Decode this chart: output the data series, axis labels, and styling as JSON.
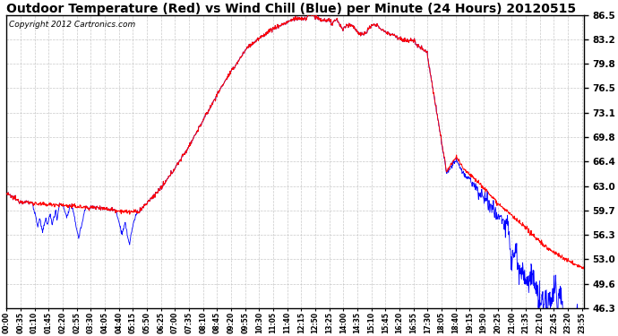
{
  "title": "Outdoor Temperature (Red) vs Wind Chill (Blue) per Minute (24 Hours) 20120515",
  "copyright_text": "Copyright 2012 Cartronics.com",
  "y_min": 46.3,
  "y_max": 86.5,
  "y_ticks": [
    46.3,
    49.6,
    53.0,
    56.3,
    59.7,
    63.0,
    66.4,
    69.8,
    73.1,
    76.5,
    79.8,
    83.2,
    86.5
  ],
  "bg_color": "#ffffff",
  "grid_color": "#bbbbbb",
  "red_color": "#ff0000",
  "blue_color": "#0000ff",
  "title_fontsize": 10,
  "copyright_fontsize": 6.5,
  "x_label_interval_minutes": 35,
  "figwidth": 6.9,
  "figheight": 3.75,
  "dpi": 100
}
